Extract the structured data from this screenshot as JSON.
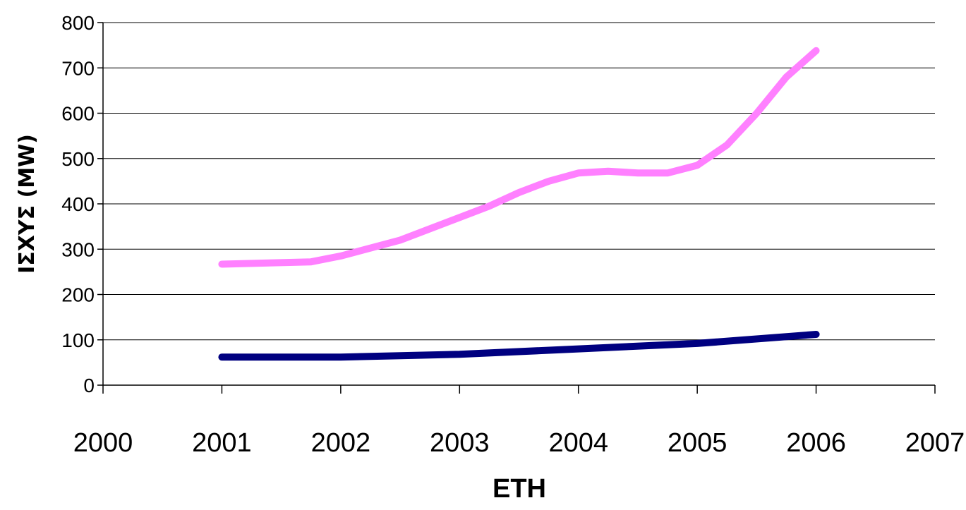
{
  "chart_data": {
    "type": "line",
    "title": "",
    "xlabel": "ΕΤΗ",
    "ylabel": "ΙΣΧΥΣ (MW)",
    "xlim": [
      2000,
      2007
    ],
    "ylim": [
      0,
      800
    ],
    "x_ticks": [
      "2000",
      "2001",
      "2002",
      "2003",
      "2004",
      "2005",
      "2006",
      "2007"
    ],
    "y_ticks": [
      "0",
      "100",
      "200",
      "300",
      "400",
      "500",
      "600",
      "700",
      "800"
    ],
    "grid": "horizontal",
    "legend": "none",
    "series": [
      {
        "color": "#ff80ff",
        "x": [
          2001,
          2001.75,
          2002,
          2002.5,
          2003,
          2003.25,
          2003.5,
          2003.75,
          2004,
          2004.25,
          2004.5,
          2004.75,
          2005,
          2005.25,
          2005.5,
          2005.75,
          2006
        ],
        "y": [
          267,
          272,
          285,
          320,
          370,
          395,
          425,
          450,
          468,
          472,
          468,
          468,
          485,
          530,
          600,
          680,
          738
        ]
      },
      {
        "color": "#000080",
        "x": [
          2001,
          2002,
          2003,
          2004,
          2005,
          2006
        ],
        "y": [
          62,
          62,
          68,
          80,
          92,
          112
        ]
      }
    ]
  }
}
